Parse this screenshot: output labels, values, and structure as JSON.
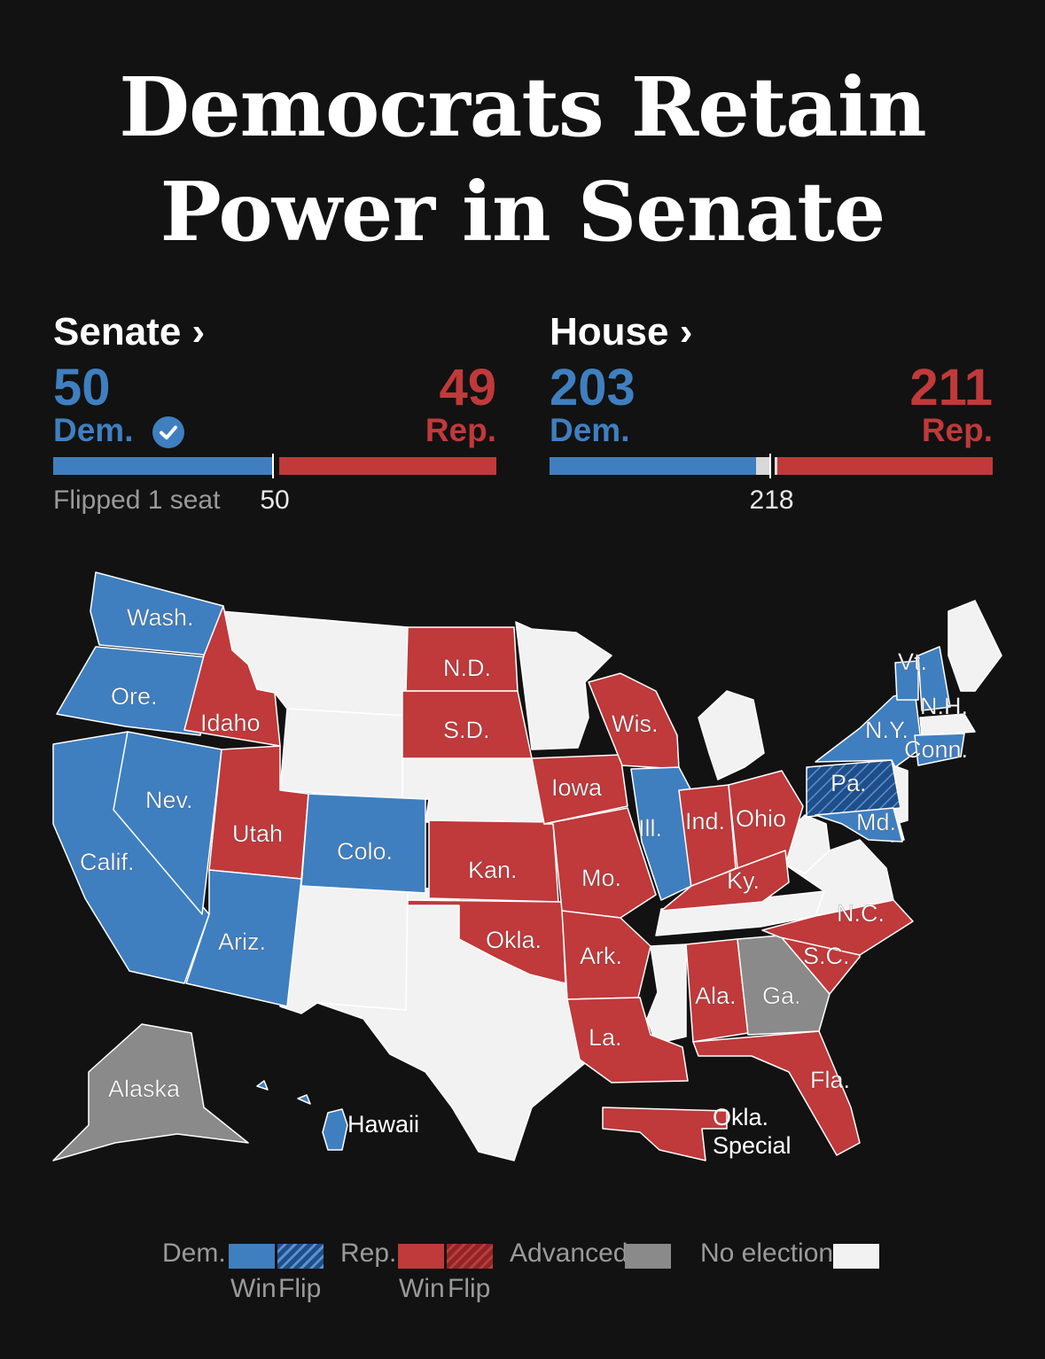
{
  "headline": [
    "Democrats Retain",
    "Power in Senate"
  ],
  "colors": {
    "dem": "#3f7fc0",
    "dem_flip": "#1f4f8a",
    "rep": "#c0393b",
    "advanced": "#8a8a8a",
    "no_election": "#f2f2f2",
    "background": "#121212"
  },
  "senate": {
    "title": "Senate ›",
    "dem_seats": "50",
    "dem_label": "Dem.",
    "rep_seats": "49",
    "rep_label": "Rep.",
    "winner_icon": "checkmark-icon",
    "flipped": "Flipped 1 seat",
    "majority": "50",
    "total": 100,
    "dem_value": 50,
    "rep_value": 49
  },
  "house": {
    "title": "House ›",
    "dem_seats": "203",
    "dem_label": "Dem.",
    "rep_seats": "211",
    "rep_label": "Rep.",
    "majority": "218",
    "total": 435,
    "dem_value": 203,
    "rep_value": 211
  },
  "map": {
    "states": [
      {
        "label": "Wash.",
        "status": "dem"
      },
      {
        "label": "Ore.",
        "status": "dem"
      },
      {
        "label": "Calif.",
        "status": "dem"
      },
      {
        "label": "Nev.",
        "status": "dem"
      },
      {
        "label": "Idaho",
        "status": "rep"
      },
      {
        "label": "Utah",
        "status": "rep"
      },
      {
        "label": "Ariz.",
        "status": "dem"
      },
      {
        "label": "Colo.",
        "status": "dem"
      },
      {
        "label": "N.D.",
        "status": "rep"
      },
      {
        "label": "S.D.",
        "status": "rep"
      },
      {
        "label": "Kan.",
        "status": "rep"
      },
      {
        "label": "Okla.",
        "status": "rep"
      },
      {
        "label": "Iowa",
        "status": "rep"
      },
      {
        "label": "Mo.",
        "status": "rep"
      },
      {
        "label": "Ark.",
        "status": "rep"
      },
      {
        "label": "La.",
        "status": "rep"
      },
      {
        "label": "Wis.",
        "status": "rep"
      },
      {
        "label": "Ill.",
        "status": "dem"
      },
      {
        "label": "Ind.",
        "status": "rep"
      },
      {
        "label": "Ohio",
        "status": "rep"
      },
      {
        "label": "Ky.",
        "status": "rep"
      },
      {
        "label": "Ala.",
        "status": "rep"
      },
      {
        "label": "Ga.",
        "status": "advanced"
      },
      {
        "label": "Fla.",
        "status": "rep"
      },
      {
        "label": "S.C.",
        "status": "rep"
      },
      {
        "label": "N.C.",
        "status": "rep"
      },
      {
        "label": "Pa.",
        "status": "dem_flip"
      },
      {
        "label": "Md.",
        "status": "dem"
      },
      {
        "label": "N.Y.",
        "status": "dem"
      },
      {
        "label": "Vt.",
        "status": "dem"
      },
      {
        "label": "N.H.",
        "status": "dem"
      },
      {
        "label": "Conn.",
        "status": "dem"
      },
      {
        "label": "Alaska",
        "status": "advanced"
      },
      {
        "label": "Hawaii",
        "status": "dem"
      },
      {
        "label": "Okla. Special",
        "status": "rep"
      }
    ]
  },
  "legend": {
    "dem": "Dem.",
    "rep": "Rep.",
    "win": "Win",
    "flip": "Flip",
    "advanced": "Advanced",
    "no_election": "No election"
  }
}
